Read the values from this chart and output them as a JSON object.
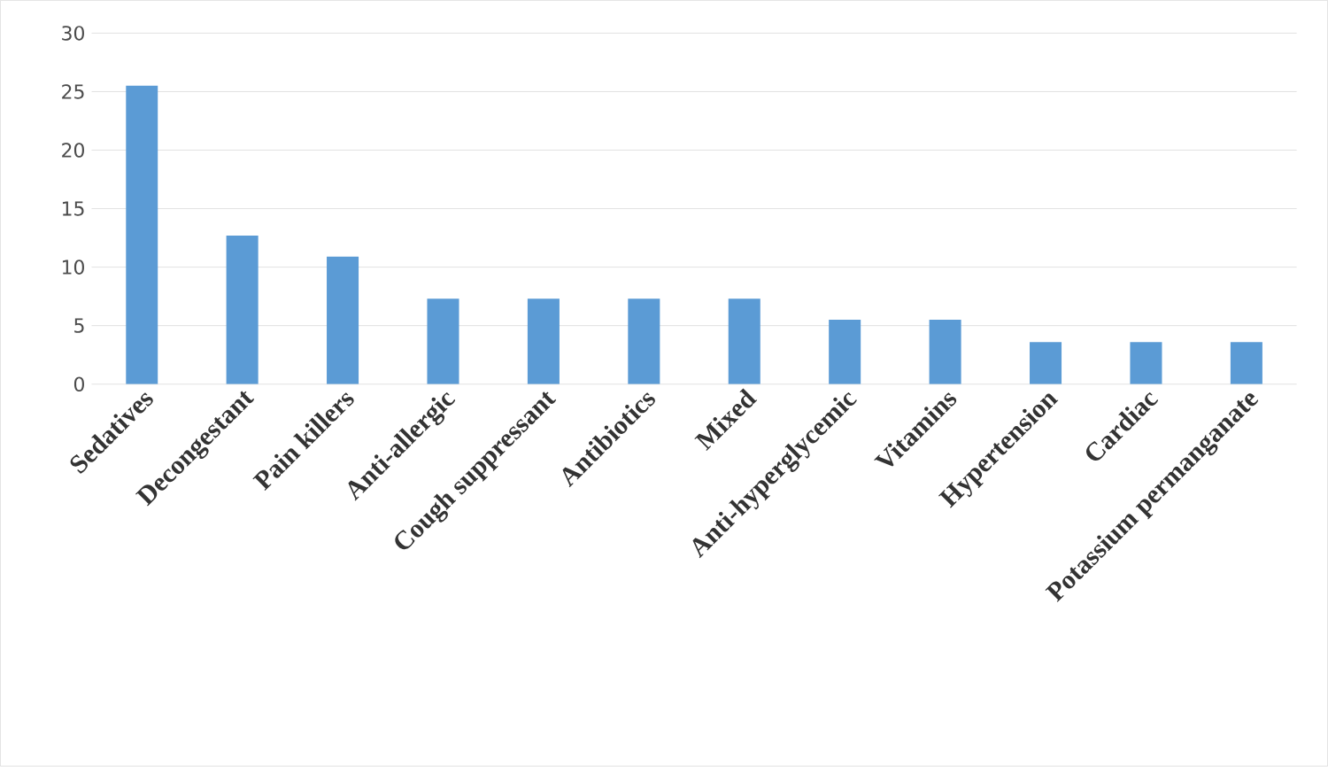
{
  "chart_data": {
    "type": "bar",
    "categories": [
      "Sedatives",
      "Decongestant",
      "Pain killers",
      "Anti-allergic",
      "Cough suppressant",
      "Antibiotics",
      "Mixed",
      "Anti-hyperglycemic",
      "Vitamins",
      "Hypertension",
      "Cardiac",
      "Potassium permanganate"
    ],
    "values": [
      25.5,
      12.7,
      10.9,
      7.3,
      7.3,
      7.3,
      7.3,
      5.5,
      5.5,
      3.6,
      3.6,
      3.6
    ],
    "color": "#5b9bd5",
    "ylim": [
      0,
      30
    ],
    "yticks": [
      0,
      5,
      10,
      15,
      20,
      25,
      30
    ],
    "grid": "y"
  }
}
